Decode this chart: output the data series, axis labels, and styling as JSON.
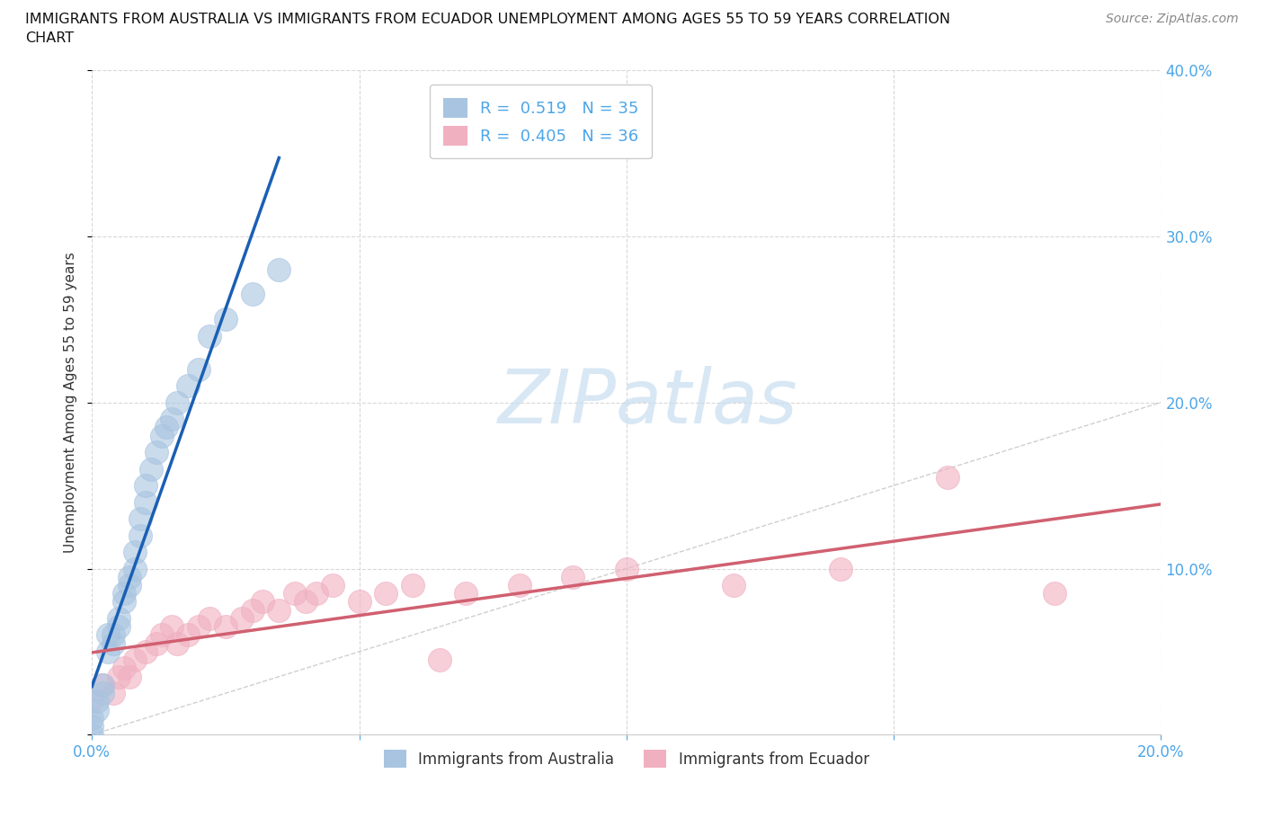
{
  "title_line1": "IMMIGRANTS FROM AUSTRALIA VS IMMIGRANTS FROM ECUADOR UNEMPLOYMENT AMONG AGES 55 TO 59 YEARS CORRELATION",
  "title_line2": "CHART",
  "source": "Source: ZipAtlas.com",
  "ylabel": "Unemployment Among Ages 55 to 59 years",
  "xlim": [
    0.0,
    0.2
  ],
  "ylim": [
    0.0,
    0.4
  ],
  "xticks": [
    0.0,
    0.05,
    0.1,
    0.15,
    0.2
  ],
  "yticks": [
    0.0,
    0.1,
    0.2,
    0.3,
    0.4
  ],
  "xtick_labels_left": [
    "0.0%",
    "",
    "",
    "",
    ""
  ],
  "xtick_labels_right": [
    "",
    "",
    "",
    "",
    "20.0%"
  ],
  "ytick_labels_right": [
    "",
    "10.0%",
    "20.0%",
    "30.0%",
    "40.0%"
  ],
  "background_color": "#ffffff",
  "australia_color": "#a8c4e0",
  "ecuador_color": "#f0b0c0",
  "australia_line_color": "#1a5fb4",
  "ecuador_line_color": "#d06070",
  "R_australia": 0.519,
  "N_australia": 35,
  "R_ecuador": 0.405,
  "N_ecuador": 36,
  "australia_x": [
    0.0,
    0.0,
    0.0,
    0.001,
    0.001,
    0.002,
    0.002,
    0.003,
    0.003,
    0.004,
    0.004,
    0.005,
    0.005,
    0.006,
    0.006,
    0.007,
    0.007,
    0.008,
    0.008,
    0.009,
    0.009,
    0.01,
    0.01,
    0.011,
    0.012,
    0.013,
    0.014,
    0.015,
    0.016,
    0.018,
    0.02,
    0.022,
    0.025,
    0.03,
    0.035
  ],
  "australia_y": [
    0.0,
    0.005,
    0.01,
    0.015,
    0.02,
    0.025,
    0.03,
    0.05,
    0.06,
    0.055,
    0.06,
    0.065,
    0.07,
    0.08,
    0.085,
    0.09,
    0.095,
    0.1,
    0.11,
    0.12,
    0.13,
    0.14,
    0.15,
    0.16,
    0.17,
    0.18,
    0.185,
    0.19,
    0.2,
    0.21,
    0.22,
    0.24,
    0.25,
    0.265,
    0.28
  ],
  "ecuador_x": [
    0.0,
    0.002,
    0.004,
    0.005,
    0.006,
    0.007,
    0.008,
    0.01,
    0.012,
    0.013,
    0.015,
    0.016,
    0.018,
    0.02,
    0.022,
    0.025,
    0.028,
    0.03,
    0.032,
    0.035,
    0.038,
    0.04,
    0.042,
    0.045,
    0.05,
    0.055,
    0.06,
    0.065,
    0.07,
    0.08,
    0.09,
    0.1,
    0.12,
    0.14,
    0.16,
    0.18
  ],
  "ecuador_y": [
    0.02,
    0.03,
    0.025,
    0.035,
    0.04,
    0.035,
    0.045,
    0.05,
    0.055,
    0.06,
    0.065,
    0.055,
    0.06,
    0.065,
    0.07,
    0.065,
    0.07,
    0.075,
    0.08,
    0.075,
    0.085,
    0.08,
    0.085,
    0.09,
    0.08,
    0.085,
    0.09,
    0.045,
    0.085,
    0.09,
    0.095,
    0.1,
    0.09,
    0.1,
    0.155,
    0.085
  ],
  "grid_color": "#d8d8d8",
  "tick_color": "#4da6e8",
  "legend_R_color": "#4da6e8",
  "watermark_color": "#c8ddf0",
  "ref_line_color": "#bbbbbb"
}
